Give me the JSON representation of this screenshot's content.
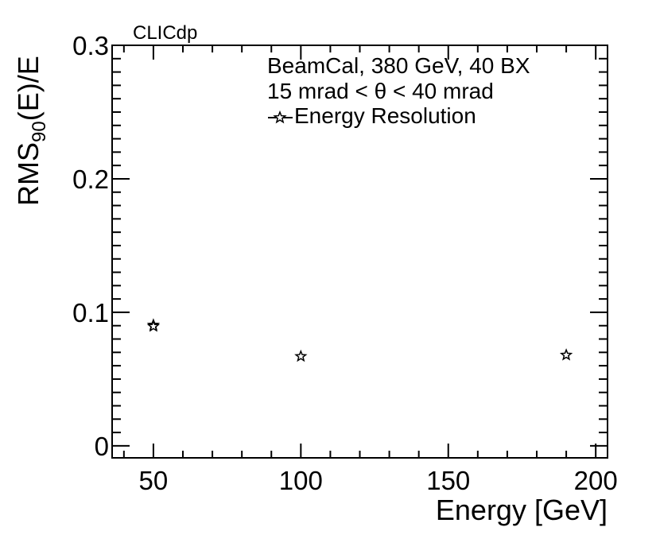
{
  "chart_data": {
    "type": "scatter",
    "title": "",
    "xlabel": "Energy [GeV]",
    "ylabel": {
      "main": "RMS",
      "sub": "90",
      "rest": "(E)/E"
    },
    "xlim": [
      36,
      204
    ],
    "ylim": [
      -0.009,
      0.3
    ],
    "x_ticks": [
      50,
      100,
      150,
      200
    ],
    "x_tick_labels": [
      "50",
      "100",
      "150",
      "200"
    ],
    "y_ticks": [
      0,
      0.1,
      0.2,
      0.3
    ],
    "y_tick_labels": [
      "0",
      "0.1",
      "0.2",
      "0.3"
    ],
    "grid": false,
    "legend_position": "top-right",
    "annotations": {
      "collaboration": "CLICdp",
      "line1": "BeamCal, 380 GeV, 40 BX",
      "line2": "15 mrad < θ < 40 mrad"
    },
    "series": [
      {
        "name": "Energy Resolution",
        "marker": "open-star",
        "color": "#000000",
        "x": [
          50,
          50,
          100,
          190
        ],
        "y": [
          0.0905,
          0.0895,
          0.067,
          0.068
        ]
      }
    ]
  }
}
